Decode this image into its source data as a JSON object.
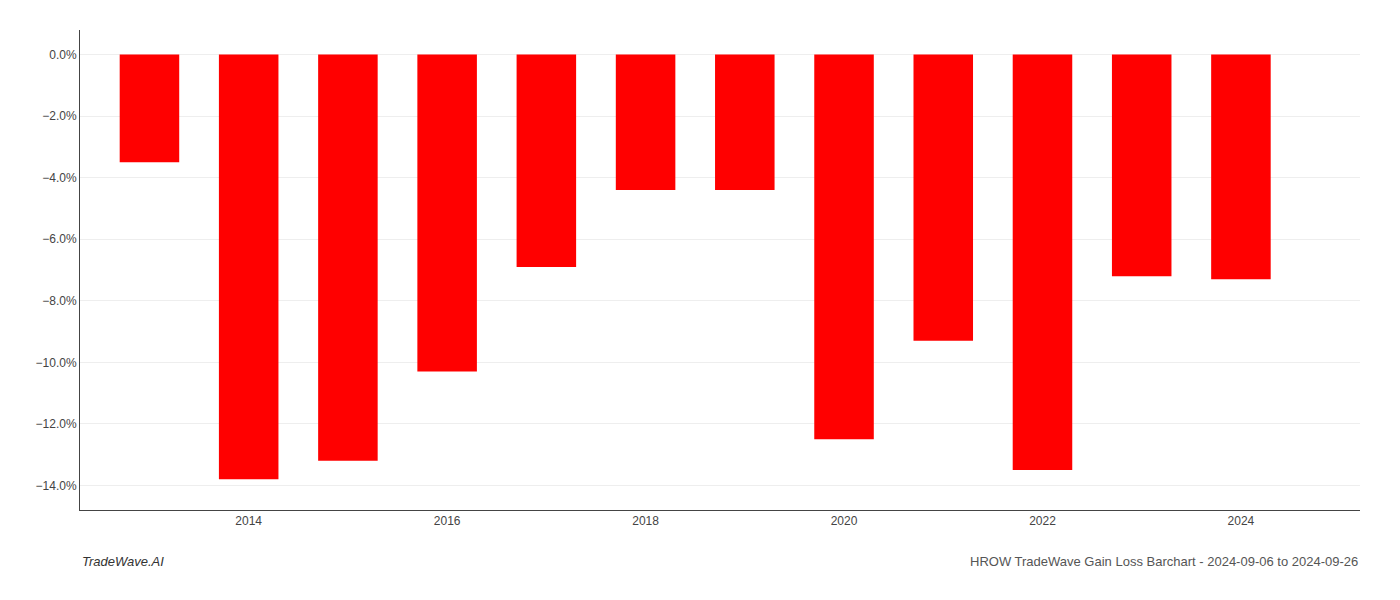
{
  "chart_data": {
    "type": "bar",
    "x": [
      2013,
      2014,
      2015,
      2016,
      2017,
      2018,
      2019,
      2020,
      2021,
      2022,
      2023,
      2024
    ],
    "values": [
      -3.5,
      -13.8,
      -13.2,
      -10.3,
      -6.9,
      -4.4,
      -4.4,
      -12.5,
      -9.3,
      -13.5,
      -7.2,
      -7.3
    ],
    "color": "#ff0000",
    "xlim": [
      2012.3,
      2025.2
    ],
    "xticks": [
      2014,
      2016,
      2018,
      2020,
      2022,
      2024
    ],
    "ylim": [
      -14.8,
      0.8
    ],
    "yticks": [
      {
        "value": 0.0,
        "label": "0.0%"
      },
      {
        "value": -2.0,
        "label": "−2.0%"
      },
      {
        "value": -4.0,
        "label": "−4.0%"
      },
      {
        "value": -6.0,
        "label": "−6.0%"
      },
      {
        "value": -8.0,
        "label": "−8.0%"
      },
      {
        "value": -10.0,
        "label": "−10.0%"
      },
      {
        "value": -12.0,
        "label": "−12.0%"
      },
      {
        "value": -14.0,
        "label": "−14.0%"
      }
    ],
    "grid": true,
    "annotations": [
      "TradeWave.AI",
      "HROW TradeWave Gain Loss Barchart - 2024-09-06 to 2024-09-26"
    ]
  }
}
